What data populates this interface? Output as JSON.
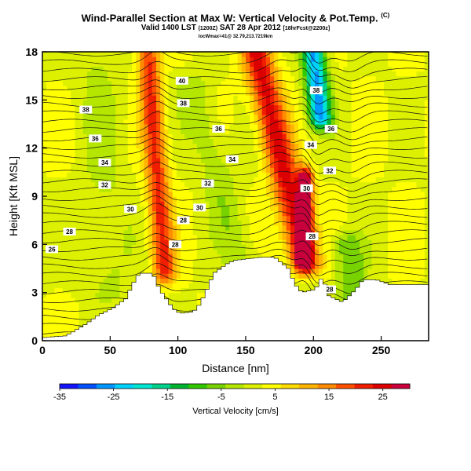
{
  "title": {
    "main": "Wind-Parallel Section at Max W: Vertical Velocity & Pot.Temp.",
    "copyright": "(C)",
    "valid_prefix": "Valid 1400 LST",
    "valid_utc": "(1200Z)",
    "valid_date": "SAT 28 Apr 2012",
    "forecast": "[18hrFcst@2200z]",
    "location": "locWmax=41@ 32.79,213.7219km"
  },
  "chart_data": {
    "type": "heatmap",
    "xlabel": "Distance [nm]",
    "ylabel": "Height [Kft MSL]",
    "xlim": [
      0,
      285
    ],
    "ylim": [
      0,
      18
    ],
    "x_ticks": [
      0,
      50,
      100,
      150,
      200,
      250
    ],
    "y_ticks": [
      0,
      3,
      6,
      9,
      12,
      15,
      18
    ],
    "colorbar": {
      "label": "Vertical Velocity [cm/s]",
      "range": [
        -35,
        30
      ],
      "ticks": [
        -35,
        -25,
        -15,
        -5,
        5,
        15,
        25
      ],
      "colors": [
        "#1414ff",
        "#0050ff",
        "#0096ff",
        "#00d2ff",
        "#00e6d2",
        "#00d28c",
        "#00b432",
        "#32c800",
        "#78d200",
        "#b4e600",
        "#dcf000",
        "#ffff00",
        "#ffdc00",
        "#ffb400",
        "#ff8c00",
        "#ff5000",
        "#f01e00",
        "#dc0000",
        "#c8003c"
      ]
    },
    "terrain": [
      [
        0,
        0.2
      ],
      [
        15,
        0.3
      ],
      [
        20,
        0.5
      ],
      [
        30,
        1.0
      ],
      [
        40,
        1.6
      ],
      [
        50,
        2.0
      ],
      [
        60,
        2.6
      ],
      [
        65,
        3.5
      ],
      [
        70,
        4.2
      ],
      [
        80,
        4.2
      ],
      [
        85,
        3.2
      ],
      [
        90,
        2.6
      ],
      [
        95,
        2.0
      ],
      [
        100,
        1.7
      ],
      [
        110,
        1.8
      ],
      [
        115,
        2.3
      ],
      [
        120,
        3.2
      ],
      [
        125,
        4.2
      ],
      [
        135,
        4.8
      ],
      [
        140,
        5.0
      ],
      [
        150,
        5.1
      ],
      [
        160,
        5.2
      ],
      [
        170,
        5.2
      ],
      [
        180,
        4.5
      ],
      [
        185,
        3.5
      ],
      [
        190,
        3.0
      ],
      [
        200,
        3.2
      ],
      [
        205,
        4.0
      ],
      [
        210,
        2.8
      ],
      [
        220,
        2.4
      ],
      [
        230,
        3.2
      ],
      [
        235,
        3.8
      ],
      [
        245,
        3.8
      ],
      [
        255,
        3.5
      ],
      [
        285,
        3.5
      ]
    ],
    "updrafts": [
      {
        "name": "updraft-1",
        "x0": 78,
        "x1": 90,
        "y0": 18,
        "y1": 4.3,
        "w": 6,
        "peak": 18
      },
      {
        "name": "updraft-2",
        "x0": 158,
        "x1": 193,
        "y0": 18,
        "y1": 5.0,
        "w": 8,
        "peak": 22
      },
      {
        "name": "updraft-3",
        "x0": 194,
        "x1": 193,
        "y0": 10.0,
        "y1": 5.2,
        "w": 4,
        "peak": 30
      }
    ],
    "downdrafts": [
      {
        "name": "downdraft-1",
        "x0": 200,
        "x1": 205,
        "y0": 18,
        "y1": 14,
        "w": 6,
        "peak": -28
      },
      {
        "name": "downdraft-2",
        "x0": 110,
        "x1": 150,
        "y0": 16,
        "y1": 4,
        "w": 9,
        "peak": -6
      },
      {
        "name": "downdraft-3",
        "x0": 225,
        "x1": 230,
        "y0": 6,
        "y1": 2.5,
        "w": 8,
        "peak": -10
      },
      {
        "name": "downdraft-4",
        "x0": 40,
        "x1": 50,
        "y0": 18,
        "y1": 3,
        "w": 12,
        "peak": -4
      }
    ],
    "contour_labels": [
      {
        "text": "40",
        "x": 103,
        "y": 16.2
      },
      {
        "text": "38",
        "x": 32,
        "y": 14.4
      },
      {
        "text": "38",
        "x": 104,
        "y": 14.8
      },
      {
        "text": "38",
        "x": 202,
        "y": 15.6
      },
      {
        "text": "36",
        "x": 39,
        "y": 12.6
      },
      {
        "text": "36",
        "x": 130,
        "y": 13.2
      },
      {
        "text": "36",
        "x": 213,
        "y": 13.2
      },
      {
        "text": "34",
        "x": 46,
        "y": 11.1
      },
      {
        "text": "34",
        "x": 140,
        "y": 11.3
      },
      {
        "text": "34",
        "x": 198,
        "y": 12.2
      },
      {
        "text": "32",
        "x": 46,
        "y": 9.7
      },
      {
        "text": "32",
        "x": 122,
        "y": 9.8
      },
      {
        "text": "32",
        "x": 212,
        "y": 10.6
      },
      {
        "text": "30",
        "x": 65,
        "y": 8.2
      },
      {
        "text": "30",
        "x": 116,
        "y": 8.3
      },
      {
        "text": "30",
        "x": 195,
        "y": 9.5
      },
      {
        "text": "28",
        "x": 20,
        "y": 6.8
      },
      {
        "text": "28",
        "x": 104,
        "y": 7.5
      },
      {
        "text": "28",
        "x": 98,
        "y": 6.0
      },
      {
        "text": "28",
        "x": 199,
        "y": 6.5
      },
      {
        "text": "26",
        "x": 7,
        "y": 5.7
      },
      {
        "text": "28",
        "x": 212,
        "y": 3.2
      }
    ]
  }
}
